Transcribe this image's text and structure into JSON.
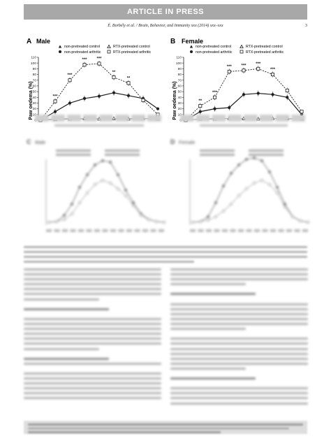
{
  "header": {
    "banner": "ARTICLE IN PRESS",
    "citation": "É. Borbély et al. / Brain, Behavior, and Immunity xxx (2014) xxx–xxx",
    "page_number": "3"
  },
  "panels": {
    "a_letter": "A",
    "a_title": "Male",
    "b_letter": "B",
    "b_title": "Female",
    "c_letter": "C",
    "c_title": "Male",
    "d_letter": "D",
    "d_title": "Female",
    "ylabel": "Paw oedema (%)",
    "sig3": "***",
    "sig2": "**"
  },
  "legend": {
    "npc": "non-pretreated control",
    "rpc": "RTX-pretreated control",
    "npa": "non-pretreated arthritic",
    "rpa": "RTX-pretreated arthritic"
  },
  "styles": {
    "line_color": "#1f1f1f",
    "faint_color": "#9a9a9a",
    "text_color": "#222222",
    "banner_color": "#a8a8a8"
  },
  "chart_data": [
    {
      "type": "line",
      "panel": "A",
      "title": "Male",
      "ylabel": "Paw oedema (%)",
      "ylim": [
        0,
        110
      ],
      "y_ticks": [
        0,
        10,
        20,
        30,
        40,
        50,
        60,
        70,
        80,
        90,
        100,
        110
      ],
      "x": [
        0,
        1,
        2,
        3,
        4,
        5,
        6,
        7,
        8
      ],
      "series": [
        {
          "name": "non-pretreated control",
          "values": [
            0,
            2,
            3,
            2,
            3,
            2,
            3,
            3,
            2
          ]
        },
        {
          "name": "RTX-pretreated control",
          "values": [
            0,
            1,
            2,
            3,
            2,
            3,
            2,
            3,
            2
          ]
        },
        {
          "name": "non-pretreated arthritic",
          "values": [
            0,
            15,
            30,
            38,
            42,
            48,
            43,
            38,
            20
          ]
        },
        {
          "name": "RTX-pretreated arthritic",
          "values": [
            0,
            33,
            70,
            97,
            99,
            75,
            65,
            35,
            10
          ]
        }
      ]
    },
    {
      "type": "line",
      "panel": "B",
      "title": "Female",
      "ylabel": "Paw oedema (%)",
      "ylim": [
        0,
        110
      ],
      "y_ticks": [
        0,
        10,
        20,
        30,
        40,
        50,
        60,
        70,
        80,
        90,
        100,
        110
      ],
      "x": [
        0,
        1,
        2,
        3,
        4,
        5,
        6,
        7,
        8
      ],
      "series": [
        {
          "name": "non-pretreated control",
          "values": [
            0,
            2,
            3,
            3,
            2,
            3,
            3,
            2,
            3
          ]
        },
        {
          "name": "RTX-pretreated control",
          "values": [
            0,
            2,
            2,
            3,
            3,
            2,
            3,
            3,
            2
          ]
        },
        {
          "name": "non-pretreated arthritic",
          "values": [
            0,
            15,
            20,
            22,
            45,
            47,
            45,
            40,
            10
          ]
        },
        {
          "name": "RTX-pretreated arthritic",
          "values": [
            0,
            25,
            40,
            85,
            87,
            90,
            80,
            52,
            15
          ]
        }
      ]
    }
  ]
}
